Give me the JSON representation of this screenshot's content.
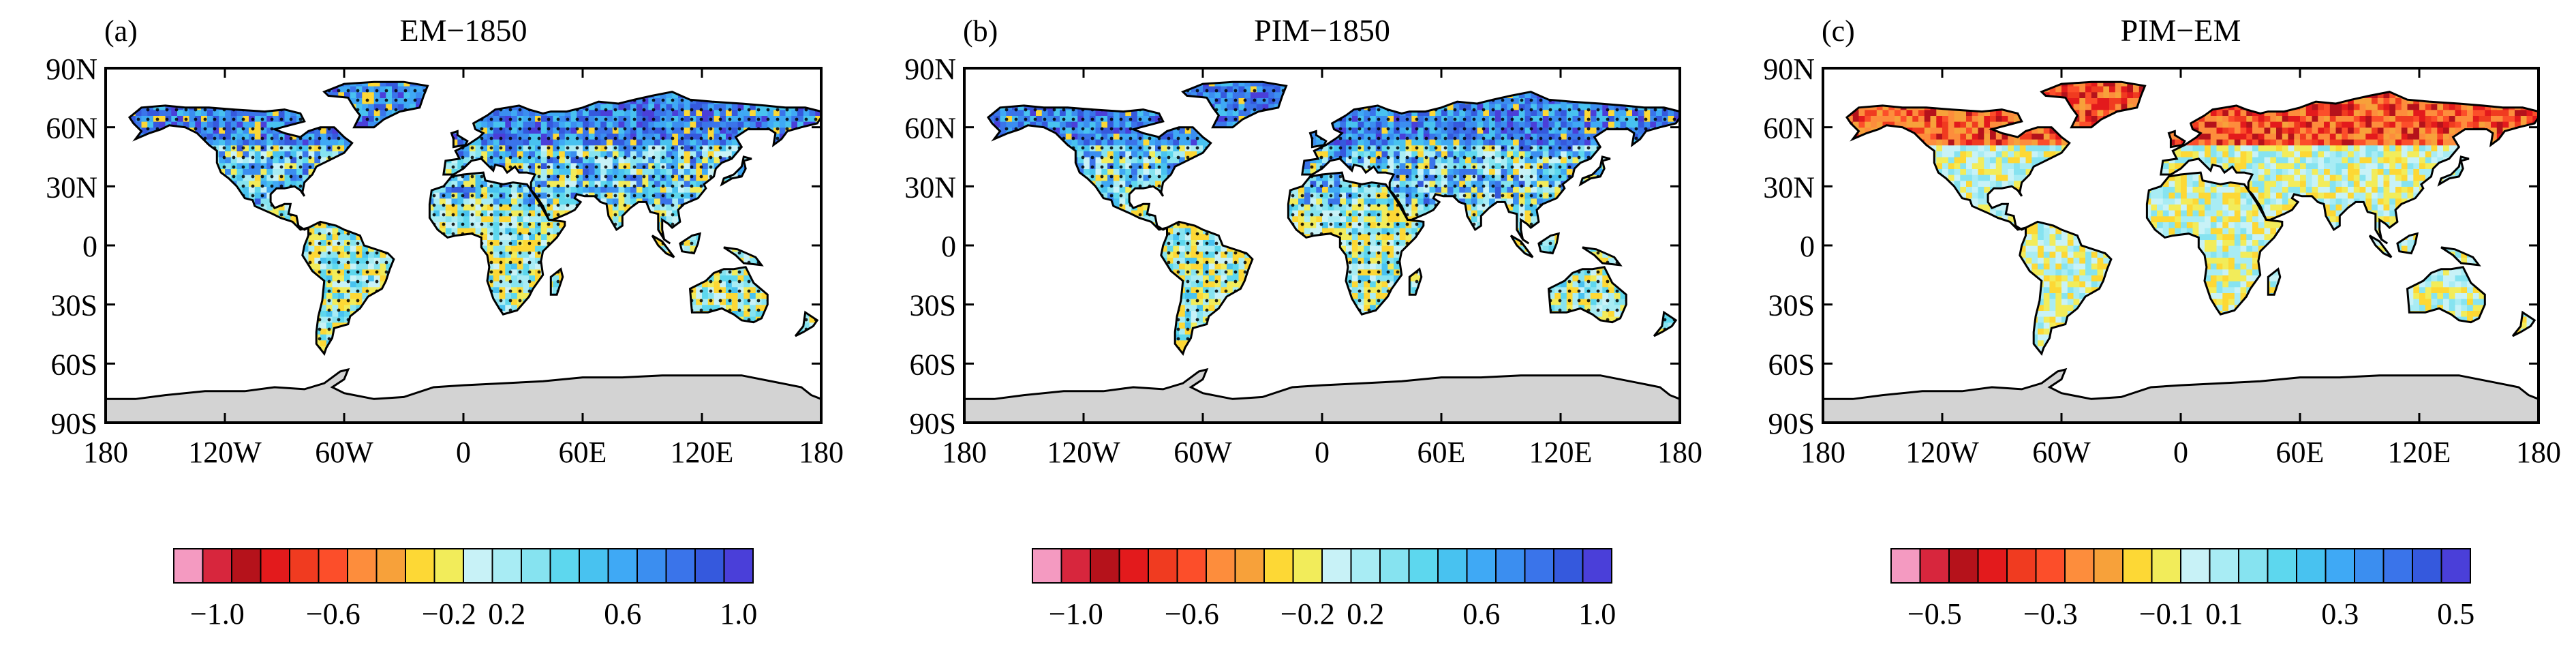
{
  "figure": {
    "panels": [
      {
        "id": "a",
        "label": "(a)",
        "title": "EM−1850",
        "colorbar": {
          "tick_labels": [
            "−1.0",
            "−0.6",
            "−0.2",
            "0.2",
            "0.6",
            "1.0"
          ],
          "range": [
            -1.0,
            1.0
          ]
        },
        "stippling": true
      },
      {
        "id": "b",
        "label": "(b)",
        "title": "PIM−1850",
        "colorbar": {
          "tick_labels": [
            "−1.0",
            "−0.6",
            "−0.2",
            "0.2",
            "0.6",
            "1.0"
          ],
          "range": [
            -1.0,
            1.0
          ]
        },
        "stippling": true
      },
      {
        "id": "c",
        "label": "(c)",
        "title": "PIM−EM",
        "colorbar": {
          "tick_labels": [
            "−0.5",
            "−0.3",
            "−0.1",
            "0.1",
            "0.3",
            "0.5"
          ],
          "range": [
            -0.5,
            0.5
          ]
        },
        "stippling": false
      }
    ],
    "lat_labels": [
      "90N",
      "60N",
      "30N",
      "0",
      "30S",
      "60S",
      "90S"
    ],
    "lon_labels": [
      "180",
      "120W",
      "60W",
      "0",
      "60E",
      "120E",
      "180"
    ],
    "colorbar_colors": [
      "#f49ac1",
      "#d7263d",
      "#b5121b",
      "#e31a1c",
      "#f03b20",
      "#fc4e2a",
      "#fd8d3c",
      "#f7a13a",
      "#fdd835",
      "#f2ec5a",
      "#c8f2f7",
      "#a8ecf4",
      "#86e3f0",
      "#5dd7ee",
      "#48c2f0",
      "#3fa9f5",
      "#3b8ef0",
      "#3a74ea",
      "#3559dd",
      "#4a3fd9"
    ],
    "antarctica_color": "#d3d3d3",
    "coastline_color": "#000000"
  }
}
